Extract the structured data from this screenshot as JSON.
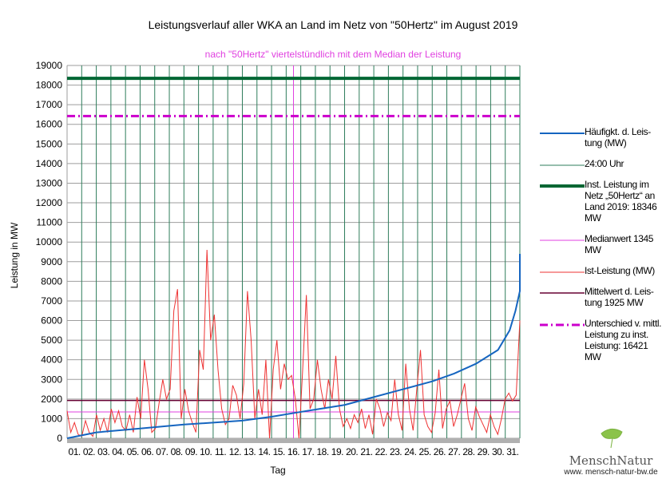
{
  "chart_data": {
    "type": "line",
    "title": "Leistungsverlauf aller WKA an Land im Netz von \"50Hertz\" im August 2019",
    "subtitle": "nach \"50Hertz\" viertelstündlich mit dem Median der Leistung",
    "xlabel": "Tag",
    "ylabel": "Leistung in MW",
    "ylim": [
      0,
      19000
    ],
    "yticks": [
      0,
      1000,
      2000,
      3000,
      4000,
      5000,
      6000,
      7000,
      8000,
      9000,
      10000,
      11000,
      12000,
      13000,
      14000,
      15000,
      16000,
      17000,
      18000,
      19000
    ],
    "categories": [
      "01.",
      "02.",
      "03.",
      "04.",
      "05.",
      "06.",
      "07.",
      "08.",
      "09.",
      "10.",
      "11.",
      "12.",
      "13.",
      "14.",
      "15.",
      "16.",
      "17.",
      "18.",
      "19.",
      "20.",
      "21.",
      "22.",
      "23.",
      "24.",
      "25.",
      "26.",
      "27.",
      "28.",
      "29.",
      "30.",
      "31."
    ],
    "ist_leistung": [
      1400,
      300,
      800,
      200,
      100,
      900,
      300,
      100,
      1200,
      400,
      1000,
      300,
      1500,
      800,
      1400,
      600,
      400,
      1200,
      300,
      2100,
      1000,
      4000,
      2500,
      300,
      500,
      1800,
      3000,
      2000,
      2500,
      6500,
      7600,
      1000,
      2500,
      1400,
      800,
      300,
      4500,
      3500,
      9600,
      5000,
      6300,
      3500,
      1500,
      700,
      1000,
      2700,
      2200,
      1000,
      2800,
      7500,
      5000,
      1000,
      2500,
      1200,
      4000,
      0,
      3500,
      5000,
      2500,
      3800,
      3000,
      3200,
      2000,
      0,
      3500,
      7300,
      1500,
      2000,
      4000,
      2500,
      1500,
      3000,
      2000,
      4200,
      1500,
      600,
      1000,
      500,
      1200,
      800,
      1500,
      500,
      1200,
      200,
      2000,
      1500,
      600,
      1300,
      900,
      3000,
      1200,
      400,
      3800,
      1500,
      400,
      2500,
      4500,
      1200,
      600,
      300,
      1300,
      3500,
      500,
      1500,
      1900,
      600,
      1200,
      2000,
      2800,
      1000,
      400,
      1600,
      1100,
      700,
      300,
      1200,
      600,
      200,
      1000,
      2000,
      2300,
      1900,
      2200,
      6000
    ],
    "haeufigkeit": [
      [
        0,
        0
      ],
      [
        2,
        300
      ],
      [
        5,
        500
      ],
      [
        8,
        700
      ],
      [
        12,
        900
      ],
      [
        14,
        1100
      ],
      [
        16,
        1345
      ],
      [
        19,
        1700
      ],
      [
        21,
        2100
      ],
      [
        23,
        2500
      ],
      [
        25,
        2900
      ],
      [
        26.5,
        3300
      ],
      [
        28,
        3800
      ],
      [
        29.5,
        4500
      ],
      [
        30.3,
        5500
      ],
      [
        30.7,
        6500
      ],
      [
        31,
        7500
      ],
      [
        31,
        9400
      ]
    ],
    "inst_leistung": 18346,
    "median": 1345,
    "mittelwert": 1925,
    "unterschied_line": 16421,
    "median_marker_day": 16,
    "colors": {
      "haeufigkeit": "#1565c0",
      "uhr": "#2e7d5b",
      "inst": "#006633",
      "median": "#e040e0",
      "ist": "#ee3333",
      "mittel": "#660033",
      "unterschied": "#cc00cc",
      "grid": "#9e9e9e"
    },
    "legend": [
      "Häufigkt. d. Leis-tung (MW)",
      "24:00 Uhr",
      "Inst. Leistung im Netz „50Hertz“ an Land 2019: 18346 MW",
      "Medianwert 1345 MW",
      "Ist-Leistung (MW)",
      "Mittelwert d. Leis-tung 1925 MW",
      "Unterschied v. mittl. Leistung zu inst. Leistung: 16421 MW"
    ]
  },
  "logo": {
    "name": "MenschNatur",
    "url": "www. mensch-natur-bw.de"
  }
}
